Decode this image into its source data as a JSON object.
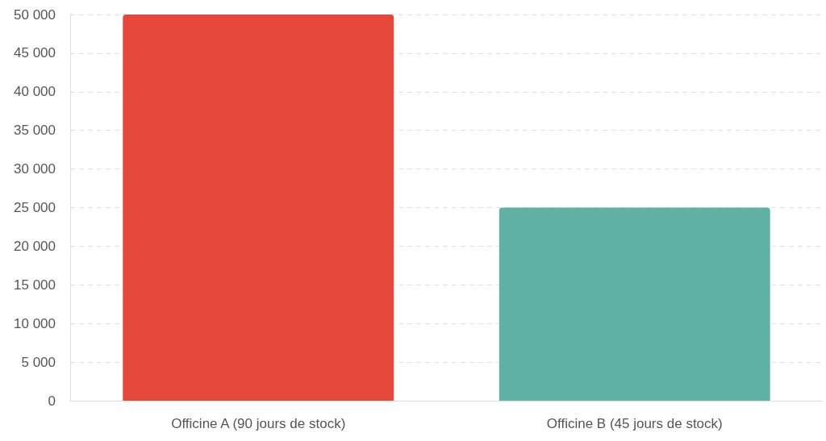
{
  "chart_data": {
    "type": "bar",
    "categories": [
      "Officine A (90 jours de stock)",
      "Officine B (45 jours de stock)"
    ],
    "values": [
      50000,
      25000
    ],
    "colors": [
      "#e5483a",
      "#5fb1a3"
    ],
    "ylim": [
      0,
      50000
    ],
    "yticks": [
      {
        "value": 0,
        "label": "0"
      },
      {
        "value": 5000,
        "label": "5 000"
      },
      {
        "value": 10000,
        "label": "10 000"
      },
      {
        "value": 15000,
        "label": "15 000"
      },
      {
        "value": 20000,
        "label": "20 000"
      },
      {
        "value": 25000,
        "label": "25 000"
      },
      {
        "value": 30000,
        "label": "30 000"
      },
      {
        "value": 35000,
        "label": "35 000"
      },
      {
        "value": 40000,
        "label": "40 000"
      },
      {
        "value": 45000,
        "label": "45 000"
      },
      {
        "value": 50000,
        "label": "50 000"
      }
    ],
    "grid": "y"
  }
}
